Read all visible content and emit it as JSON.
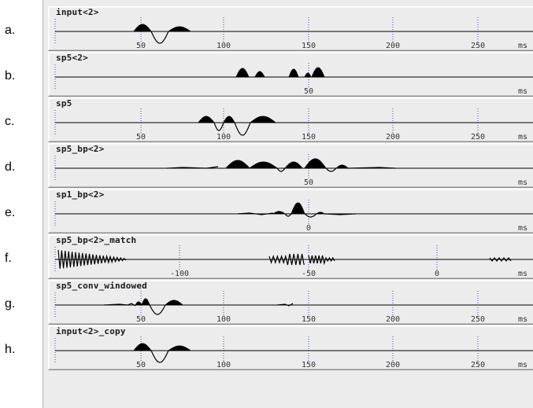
{
  "row_labels": [
    "a.",
    "b.",
    "c.",
    "d.",
    "e.",
    "f.",
    "g.",
    "h."
  ],
  "unit": "ms",
  "colors": {
    "panel_bg": "#ececec",
    "waveform": "#000000",
    "tick": "#3355aa"
  },
  "tracks": [
    {
      "title": "input<2>",
      "ticks": [
        {
          "label": "50",
          "pos": 0.19
        },
        {
          "label": "100",
          "pos": 0.36
        },
        {
          "label": "150",
          "pos": 0.535
        },
        {
          "label": "200",
          "pos": 0.71
        },
        {
          "label": "250",
          "pos": 0.885
        }
      ],
      "waveform": "input"
    },
    {
      "title": "sp5<2>",
      "ticks": [
        {
          "label": "50",
          "pos": 0.535
        }
      ],
      "waveform": "spikes"
    },
    {
      "title": "sp5",
      "ticks": [
        {
          "label": "50",
          "pos": 0.19
        },
        {
          "label": "100",
          "pos": 0.36
        },
        {
          "label": "150",
          "pos": 0.535
        },
        {
          "label": "200",
          "pos": 0.71
        },
        {
          "label": "250",
          "pos": 0.885
        }
      ],
      "waveform": "sp5"
    },
    {
      "title": "sp5_bp<2>",
      "ticks": [
        {
          "label": "50",
          "pos": 0.535
        }
      ],
      "waveform": "bp"
    },
    {
      "title": "sp1_bp<2>",
      "ticks": [
        {
          "label": "0",
          "pos": 0.535
        }
      ],
      "waveform": "sp1bp"
    },
    {
      "title": "sp5_bp<2>_match",
      "ticks": [
        {
          "label": "-100",
          "pos": 0.27
        },
        {
          "label": "-50",
          "pos": 0.535
        },
        {
          "label": "0",
          "pos": 0.8
        }
      ],
      "waveform": "match"
    },
    {
      "title": "sp5_conv_windowed",
      "ticks": [
        {
          "label": "50",
          "pos": 0.19
        },
        {
          "label": "100",
          "pos": 0.36
        },
        {
          "label": "150",
          "pos": 0.535
        },
        {
          "label": "200",
          "pos": 0.71
        },
        {
          "label": "250",
          "pos": 0.885
        }
      ],
      "waveform": "conv"
    },
    {
      "title": "input<2>_copy",
      "ticks": [
        {
          "label": "50",
          "pos": 0.19
        },
        {
          "label": "100",
          "pos": 0.36
        },
        {
          "label": "150",
          "pos": 0.535
        },
        {
          "label": "200",
          "pos": 0.71
        },
        {
          "label": "250",
          "pos": 0.885
        }
      ],
      "waveform": "input"
    }
  ]
}
